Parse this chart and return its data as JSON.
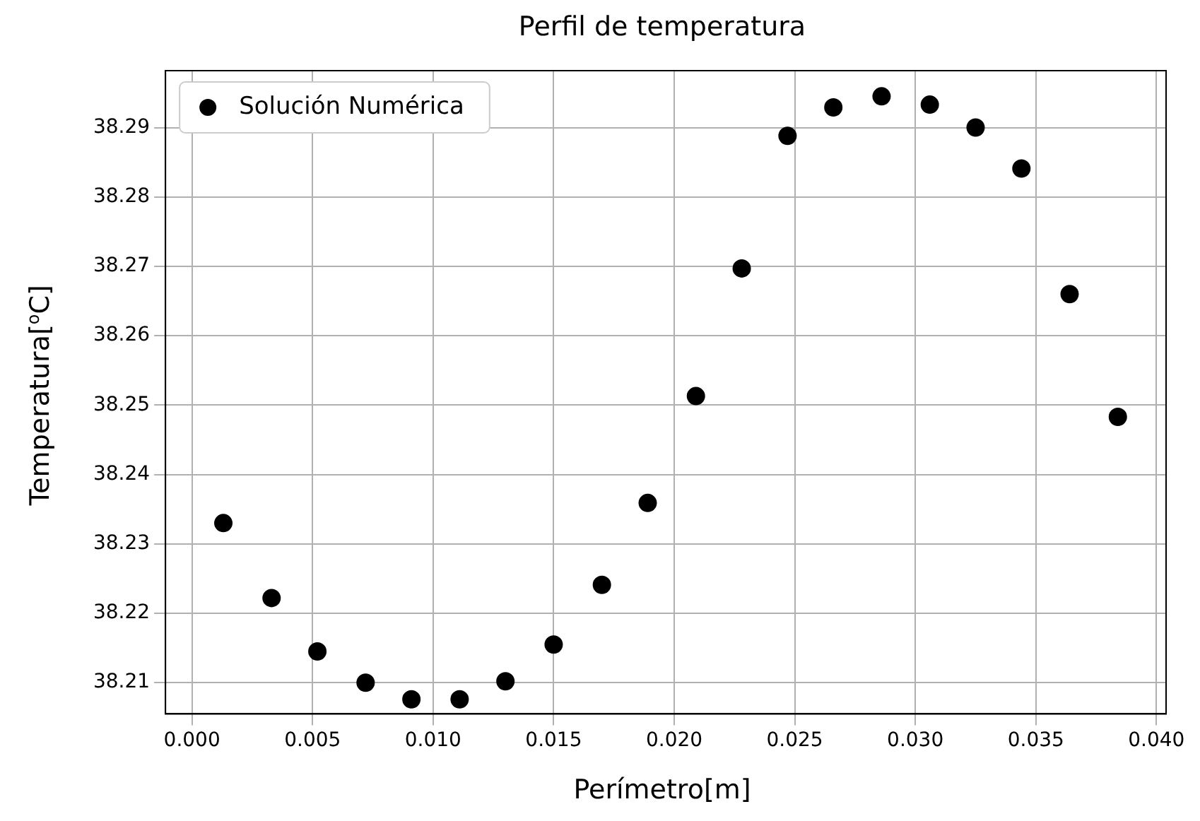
{
  "chart_data": {
    "type": "scatter",
    "title": "Perfil de temperatura",
    "xlabel": "Perímetro[m]",
    "ylabel": "Temperatura[$^{o}$C]",
    "x": [
      0.0013,
      0.0033,
      0.0052,
      0.0072,
      0.0091,
      0.0111,
      0.013,
      0.015,
      0.017,
      0.0189,
      0.0209,
      0.0228,
      0.0247,
      0.0266,
      0.0286,
      0.0306,
      0.0325,
      0.0344,
      0.0364,
      0.0384
    ],
    "series": [
      {
        "name": "Solución Numérica",
        "color": "#000000",
        "values": [
          38.233,
          38.2222,
          38.2145,
          38.21,
          38.2076,
          38.2076,
          38.2102,
          38.2155,
          38.2241,
          38.2359,
          38.2513,
          38.2697,
          38.2888,
          38.2929,
          38.2945,
          38.2933,
          38.29,
          38.2841,
          38.266,
          38.2483
        ]
      }
    ],
    "xlim": [
      -0.0011,
      0.0404
    ],
    "xticks": [
      {
        "value": 0,
        "label": "0.000"
      },
      {
        "value": 0.005,
        "label": "0.005"
      },
      {
        "value": 0.01,
        "label": "0.010"
      },
      {
        "value": 0.015,
        "label": "0.015"
      },
      {
        "value": 0.02,
        "label": "0.020"
      },
      {
        "value": 0.025,
        "label": "0.025"
      },
      {
        "value": 0.03,
        "label": "0.030"
      },
      {
        "value": 0.035,
        "label": "0.035"
      },
      {
        "value": 0.04,
        "label": "0.040"
      }
    ],
    "ylim": [
      38.2055,
      38.2982
    ],
    "yticks": [
      38.21,
      38.22,
      38.23,
      38.24,
      38.25,
      38.26,
      38.27,
      38.28,
      38.29
    ],
    "grid": true,
    "legend": "top left",
    "marker": "circle"
  }
}
